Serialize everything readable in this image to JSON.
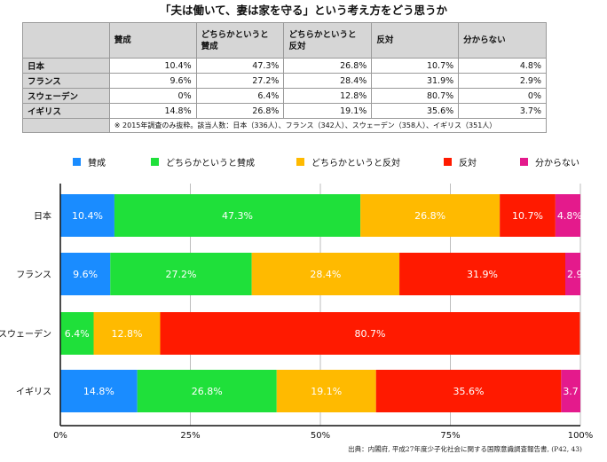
{
  "page": {
    "title": "「夫は働いて、妻は家を守る」という考え方をどう思うか",
    "source": "出典：内閣府, 平成27年度少子化社会に関する国際意識調査報告書, (P42, 43)"
  },
  "table": {
    "headers": [
      "賛成",
      "どちらかというと\n賛成",
      "どちらかというと\n反対",
      "反対",
      "分からない"
    ],
    "rows": [
      {
        "country": "日本",
        "values": [
          "10.4%",
          "47.3%",
          "26.8%",
          "10.7%",
          "4.8%"
        ]
      },
      {
        "country": "フランス",
        "values": [
          "9.6%",
          "27.2%",
          "28.4%",
          "31.9%",
          "2.9%"
        ]
      },
      {
        "country": "スウェーデン",
        "values": [
          "0%",
          "6.4%",
          "12.8%",
          "80.7%",
          "0%"
        ]
      },
      {
        "country": "イギリス",
        "values": [
          "14.8%",
          "26.8%",
          "19.1%",
          "35.6%",
          "3.7%"
        ]
      }
    ],
    "note": "※ 2015年調査のみ抜粋。該当人数：日本（336人）、フランス（342人）、スウェーデン（358人）、イギリス（351人）"
  },
  "chart_data": {
    "type": "bar",
    "orientation": "horizontal",
    "stacked": true,
    "title": "「夫は働いて、妻は家を守る」という考え方をどう思うか",
    "categories": [
      "日本",
      "フランス",
      "スウェーデン",
      "イギリス"
    ],
    "series": [
      {
        "name": "賛成",
        "color": "#1a8cff",
        "values": [
          10.4,
          9.6,
          0,
          14.8
        ]
      },
      {
        "name": "どちらかというと賛成",
        "color": "#1fe03a",
        "values": [
          47.3,
          27.2,
          6.4,
          26.8
        ]
      },
      {
        "name": "どちらかというと反対",
        "color": "#ffba00",
        "values": [
          26.8,
          28.4,
          12.8,
          19.1
        ]
      },
      {
        "name": "反対",
        "color": "#ff1a00",
        "values": [
          10.7,
          31.9,
          80.7,
          35.6
        ]
      },
      {
        "name": "分からない",
        "color": "#e41a8c",
        "values": [
          4.8,
          2.9,
          0,
          3.7
        ]
      }
    ],
    "labels": [
      [
        "10.4%",
        "9.6%",
        "",
        "14.8%"
      ],
      [
        "47.3%",
        "27.2%",
        "6.4%",
        "26.8%"
      ],
      [
        "26.8%",
        "28.4%",
        "12.8%",
        "19.1%"
      ],
      [
        "10.7%",
        "31.9%",
        "80.7%",
        "35.6%"
      ],
      [
        "4.8%",
        "2.9",
        "",
        "3.7"
      ]
    ],
    "xlim": [
      0,
      100
    ],
    "xticks": [
      "0%",
      "25%",
      "50%",
      "75%",
      "100%"
    ],
    "legend_position": "top",
    "grid": true
  }
}
